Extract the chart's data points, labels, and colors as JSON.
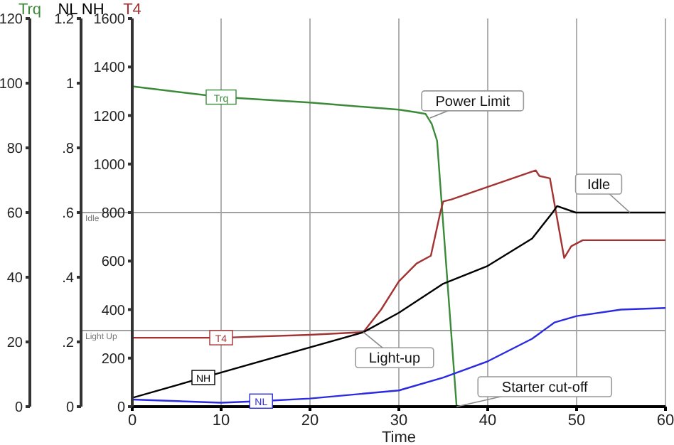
{
  "chart_data": {
    "type": "line",
    "xlabel": "Time",
    "ylabel": "T4",
    "y2label": "NL NH",
    "y3label": "Trq",
    "xlim": [
      0,
      60
    ],
    "xticks": [
      0,
      10,
      20,
      30,
      40,
      50,
      60
    ],
    "ylim": [
      0,
      1600
    ],
    "yticks": [
      0,
      200,
      400,
      600,
      800,
      1000,
      1200,
      1400,
      1600
    ],
    "y2lim": [
      0,
      1.2
    ],
    "y2ticks": [
      0,
      {
        "value": 0.2,
        "label": ".2"
      },
      {
        "value": 0.4,
        "label": ".4"
      },
      {
        "value": 0.6,
        "label": ".6"
      },
      {
        "value": 0.8,
        "label": ".8"
      },
      1,
      1.2
    ],
    "y3lim": [
      0,
      120
    ],
    "y3ticks": [
      0,
      20,
      40,
      60,
      80,
      100,
      120
    ],
    "grid": "x",
    "legend": false,
    "series": [
      {
        "name": "Trq",
        "color": "#3a8a3a",
        "axis": "y3",
        "x": [
          0,
          10,
          20,
          30,
          32,
          33,
          33.7,
          34.3,
          36.5,
          60
        ],
        "values": [
          99,
          95.7,
          94,
          91.8,
          91,
          90.5,
          87.4,
          82.2,
          0,
          0
        ]
      },
      {
        "name": "T4",
        "color": "#a33333",
        "x": [
          0,
          10,
          20,
          26,
          28,
          30,
          32,
          33.6,
          34.7,
          35,
          35.9,
          45.4,
          45.8,
          47,
          48.6,
          49.4,
          50.7,
          60
        ],
        "values": [
          284,
          284,
          296,
          307,
          400,
          516,
          590,
          622,
          806,
          846,
          854,
          974,
          951,
          941,
          613,
          661,
          686,
          686
        ]
      },
      {
        "name": "NH",
        "color": "#000000",
        "axis": "y2",
        "x": [
          0,
          8,
          26,
          30,
          35,
          40,
          45,
          47.3,
          47.8,
          49.9,
          60
        ],
        "values": [
          0.027,
          0.09,
          0.23,
          0.29,
          0.38,
          0.435,
          0.52,
          0.6,
          0.62,
          0.6,
          0.6
        ]
      },
      {
        "name": "NL",
        "color": "#2a2ae0",
        "axis": "y2",
        "x": [
          0,
          10,
          14.5,
          20,
          30,
          35,
          40,
          45,
          47.5,
          50,
          55,
          60
        ],
        "values": [
          0.022,
          0.012,
          0.017,
          0.025,
          0.05,
          0.09,
          0.14,
          0.21,
          0.26,
          0.28,
          0.3,
          0.305
        ]
      }
    ],
    "ref_lines": [
      {
        "axis": "y2",
        "value": 0.6,
        "label": "Idle",
        "color": "#a0a0a0"
      },
      {
        "axis": "y2",
        "value": 0.235,
        "label": "Light Up",
        "color": "#a0a0a0"
      }
    ],
    "annotations": [
      {
        "text": "Power Limit",
        "x": 33.5,
        "y": 1190
      },
      {
        "text": "Idle",
        "x": 56,
        "y": 800
      },
      {
        "text": "Light-up",
        "x": 26,
        "y": 307
      },
      {
        "text": "Starter cut-off",
        "x": 36.5,
        "y": 0
      }
    ]
  }
}
